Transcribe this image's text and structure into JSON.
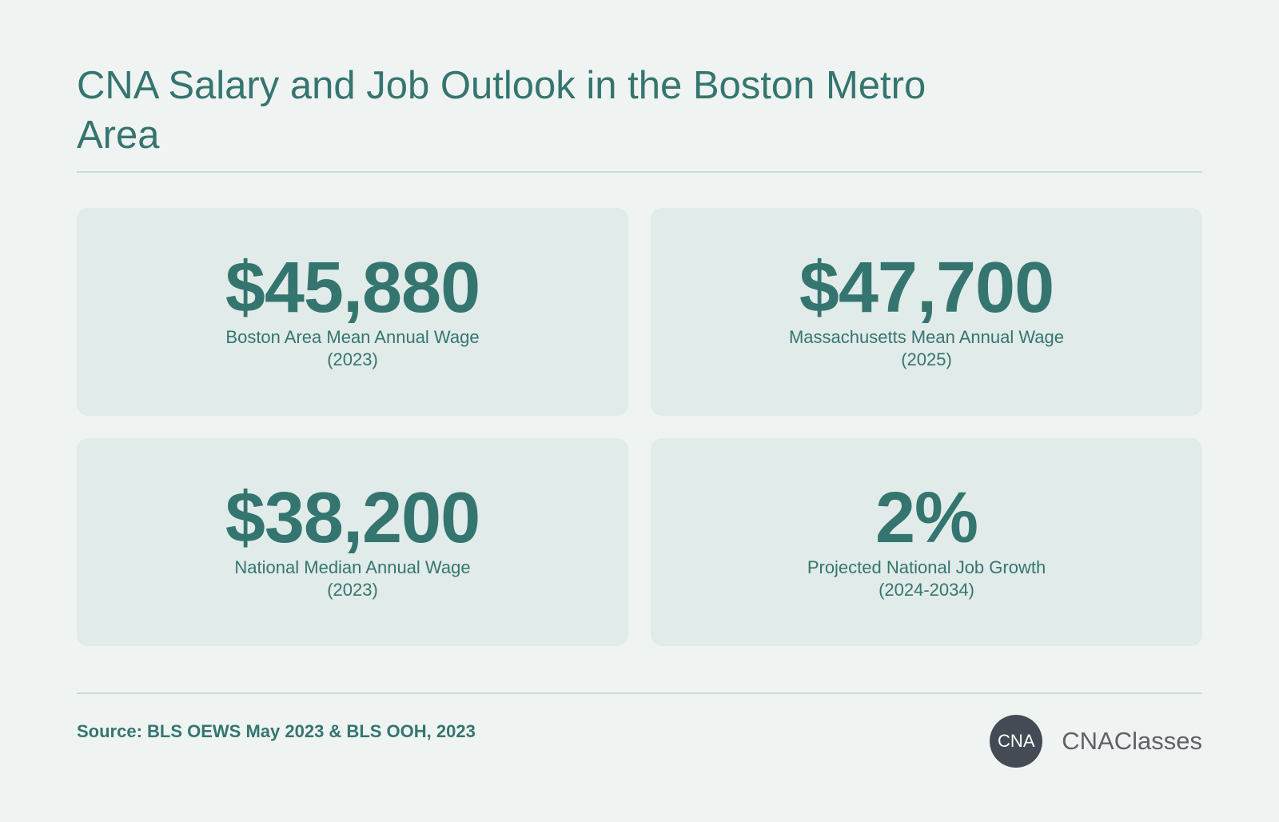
{
  "header": {
    "title": "CNA Salary and Job Outlook in the Boston Metro Area"
  },
  "stats": [
    {
      "value": "$45,880",
      "label_line1": "Boston Area Mean Annual Wage",
      "label_line2": "(2023)"
    },
    {
      "value": "$47,700",
      "label_line1": "Massachusetts Mean Annual Wage",
      "label_line2": "(2025)"
    },
    {
      "value": "$38,200",
      "label_line1": "National Median Annual Wage",
      "label_line2": "(2023)"
    },
    {
      "value": "2%",
      "label_line1": "Projected National Job Growth",
      "label_line2": "(2024-2034)"
    }
  ],
  "footer": {
    "source": "Source: BLS OEWS May 2023 & BLS OOH, 2023",
    "logo_badge": "CNA",
    "logo_text": "CNAClasses"
  },
  "colors": {
    "background": "#eff4f2",
    "card": "#e1ebe9",
    "accent": "#357570",
    "logo_badge": "#444b55",
    "logo_text": "#5e6268"
  }
}
